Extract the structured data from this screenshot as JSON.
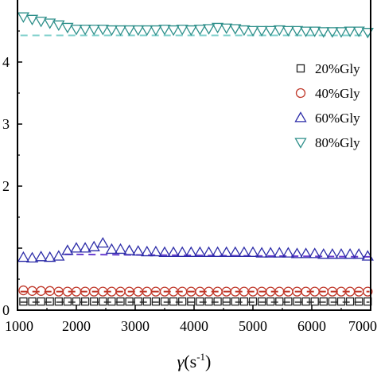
{
  "chart_data": {
    "type": "scatter",
    "xlabel": {
      "symbol": "γ",
      "unit_open": "(s",
      "unit_exp": "-1",
      "unit_close": ")"
    },
    "xlim": [
      1000,
      7000
    ],
    "ylim": [
      0,
      5
    ],
    "x_ticks": [
      1000,
      2000,
      3000,
      4000,
      5000,
      6000,
      7000
    ],
    "x_tick_labels": [
      "1000",
      "2000",
      "3000",
      "4000",
      "5000",
      "6000",
      "7000"
    ],
    "y_ticks": [
      0,
      1,
      2,
      3,
      4
    ],
    "y_tick_labels": [
      "0",
      "",
      "2",
      "3",
      "4"
    ],
    "legend": {
      "placement": "right"
    },
    "x": [
      1100,
      1250,
      1400,
      1550,
      1700,
      1850,
      2000,
      2150,
      2300,
      2450,
      2600,
      2750,
      2900,
      3050,
      3200,
      3350,
      3500,
      3650,
      3800,
      3950,
      4100,
      4250,
      4400,
      4550,
      4700,
      4850,
      5000,
      5150,
      5300,
      5450,
      5600,
      5750,
      5900,
      6050,
      6200,
      6350,
      6500,
      6650,
      6800,
      6950
    ],
    "series": [
      {
        "name": "20%Gly",
        "marker": "square",
        "color": "#222222",
        "values": [
          0.14,
          0.14,
          0.14,
          0.14,
          0.14,
          0.14,
          0.14,
          0.14,
          0.14,
          0.14,
          0.14,
          0.14,
          0.14,
          0.14,
          0.14,
          0.14,
          0.14,
          0.14,
          0.14,
          0.14,
          0.14,
          0.14,
          0.14,
          0.14,
          0.14,
          0.14,
          0.14,
          0.14,
          0.14,
          0.14,
          0.14,
          0.14,
          0.14,
          0.14,
          0.14,
          0.14,
          0.14,
          0.14,
          0.14,
          0.14
        ],
        "fit": {
          "y": 0.13,
          "color": "#555555"
        }
      },
      {
        "name": "40%Gly",
        "marker": "circle",
        "color": "#c0392b",
        "values": [
          0.32,
          0.31,
          0.31,
          0.31,
          0.3,
          0.3,
          0.3,
          0.3,
          0.3,
          0.3,
          0.3,
          0.3,
          0.3,
          0.3,
          0.3,
          0.3,
          0.3,
          0.3,
          0.3,
          0.3,
          0.3,
          0.3,
          0.3,
          0.3,
          0.3,
          0.3,
          0.3,
          0.3,
          0.3,
          0.3,
          0.3,
          0.3,
          0.3,
          0.3,
          0.3,
          0.3,
          0.3,
          0.3,
          0.3,
          0.3
        ],
        "fit": {
          "y": 0.3,
          "color": "#c0392b"
        }
      },
      {
        "name": "60%Gly",
        "marker": "triangle-up",
        "color": "#2c2ca8",
        "values": [
          0.85,
          0.84,
          0.86,
          0.85,
          0.87,
          0.96,
          1.0,
          1.0,
          1.02,
          1.08,
          0.98,
          0.98,
          0.96,
          0.95,
          0.94,
          0.94,
          0.93,
          0.93,
          0.93,
          0.93,
          0.93,
          0.93,
          0.93,
          0.93,
          0.93,
          0.93,
          0.93,
          0.92,
          0.92,
          0.92,
          0.92,
          0.91,
          0.91,
          0.91,
          0.9,
          0.9,
          0.9,
          0.9,
          0.9,
          0.87
        ],
        "fit": {
          "x": [
            1800,
            7000
          ],
          "y": [
            0.9,
            0.86
          ],
          "color": "#6a3fd0"
        }
      },
      {
        "name": "80%Gly",
        "marker": "triangle-down",
        "color": "#2e8f8a",
        "values": [
          4.73,
          4.69,
          4.66,
          4.63,
          4.6,
          4.56,
          4.53,
          4.53,
          4.53,
          4.53,
          4.52,
          4.52,
          4.52,
          4.52,
          4.52,
          4.52,
          4.53,
          4.52,
          4.53,
          4.52,
          4.53,
          4.54,
          4.56,
          4.55,
          4.54,
          4.52,
          4.51,
          4.51,
          4.51,
          4.52,
          4.51,
          4.51,
          4.5,
          4.5,
          4.49,
          4.49,
          4.49,
          4.5,
          4.5,
          4.48
        ],
        "fit": {
          "y": 4.43,
          "color": "#7fd0cc"
        }
      }
    ]
  }
}
